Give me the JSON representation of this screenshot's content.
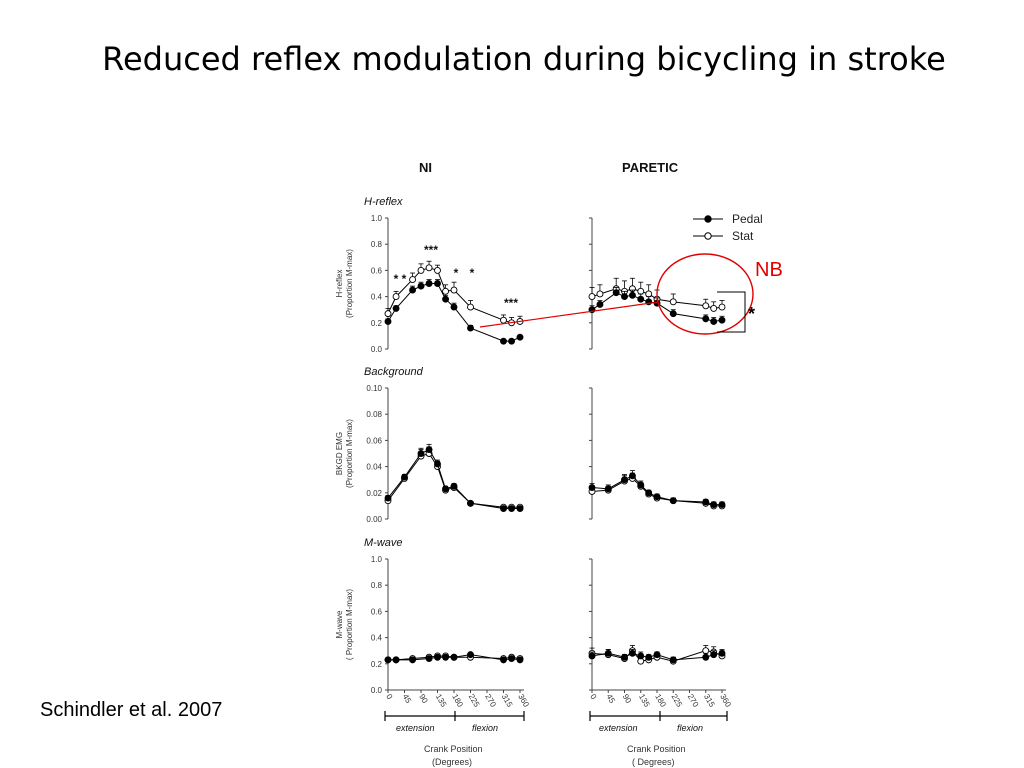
{
  "slide": {
    "title": "Reduced reflex modulation during bicycling in stroke",
    "citation": "Schindler et al. 2007",
    "annotation_nb": "NB",
    "annotation_star": "*"
  },
  "columns": [
    "NI",
    "PARETIC"
  ],
  "x_axis": {
    "ticks": [
      0,
      45,
      90,
      135,
      180,
      225,
      270,
      315,
      360
    ],
    "label_line1": "Crank Position",
    "label_line2_ni": "(Degrees)",
    "label_line2_paretic": "( Degrees)",
    "phase_extension": "extension",
    "phase_flexion": "flexion"
  },
  "legend": {
    "pedal": "Pedal",
    "stat": "Stat"
  },
  "colors": {
    "annotation": "#e00000",
    "series": "#000000"
  },
  "chart_data": [
    {
      "type": "line",
      "panel": "H-reflex",
      "column": "NI",
      "title": "H-reflex",
      "ylabel_line1": "H-reflex",
      "ylabel_line2": "(Proportion M-max)",
      "ylim": [
        0,
        1.0
      ],
      "yticks": [
        "0.0",
        "0.2",
        "0.4",
        "0.6",
        "0.8",
        "1.0"
      ],
      "significance": [
        "* *",
        "***",
        "*",
        "*",
        "***"
      ],
      "series": [
        {
          "name": "Pedal",
          "x": [
            0,
            22,
            67,
            90,
            112,
            135,
            157,
            180,
            225,
            315,
            337,
            360
          ],
          "y": [
            0.21,
            0.31,
            0.45,
            0.48,
            0.5,
            0.5,
            0.38,
            0.32,
            0.16,
            0.06,
            0.06,
            0.09
          ],
          "err": [
            0.02,
            0.02,
            0.03,
            0.03,
            0.03,
            0.03,
            0.03,
            0.03,
            0.02,
            0.01,
            0.01,
            0.01
          ]
        },
        {
          "name": "Stat",
          "x": [
            0,
            22,
            67,
            90,
            112,
            135,
            157,
            180,
            225,
            315,
            337,
            360
          ],
          "y": [
            0.27,
            0.4,
            0.53,
            0.6,
            0.62,
            0.6,
            0.44,
            0.45,
            0.32,
            0.22,
            0.2,
            0.21
          ],
          "err": [
            0.04,
            0.04,
            0.05,
            0.05,
            0.05,
            0.04,
            0.05,
            0.06,
            0.05,
            0.04,
            0.04,
            0.04
          ]
        }
      ]
    },
    {
      "type": "line",
      "panel": "H-reflex",
      "column": "PARETIC",
      "ylim": [
        0,
        1.0
      ],
      "series": [
        {
          "name": "Pedal",
          "x": [
            0,
            22,
            67,
            90,
            112,
            135,
            157,
            180,
            225,
            315,
            337,
            360
          ],
          "y": [
            0.3,
            0.34,
            0.43,
            0.4,
            0.41,
            0.38,
            0.36,
            0.35,
            0.27,
            0.23,
            0.21,
            0.22
          ],
          "err": [
            0.03,
            0.03,
            0.04,
            0.04,
            0.04,
            0.04,
            0.04,
            0.04,
            0.03,
            0.03,
            0.03,
            0.03
          ]
        },
        {
          "name": "Stat",
          "x": [
            0,
            22,
            67,
            90,
            112,
            135,
            157,
            180,
            225,
            315,
            337,
            360
          ],
          "y": [
            0.4,
            0.42,
            0.46,
            0.44,
            0.46,
            0.44,
            0.42,
            0.38,
            0.36,
            0.33,
            0.31,
            0.32
          ],
          "err": [
            0.07,
            0.07,
            0.08,
            0.08,
            0.08,
            0.07,
            0.07,
            0.07,
            0.06,
            0.05,
            0.05,
            0.05
          ]
        }
      ]
    },
    {
      "type": "line",
      "panel": "Background",
      "column": "NI",
      "title": "Background",
      "ylabel_line1": "BKGD EMG",
      "ylabel_line2": "(Proportion M-max)",
      "ylim": [
        0,
        0.1
      ],
      "yticks": [
        "0.00",
        "0.02",
        "0.04",
        "0.06",
        "0.08",
        "0.10"
      ],
      "series": [
        {
          "name": "Pedal",
          "x": [
            0,
            45,
            90,
            112,
            135,
            157,
            180,
            225,
            315,
            337,
            360
          ],
          "y": [
            0.016,
            0.032,
            0.05,
            0.053,
            0.042,
            0.023,
            0.025,
            0.012,
            0.008,
            0.008,
            0.008
          ],
          "err": [
            0.002,
            0.002,
            0.004,
            0.004,
            0.003,
            0.002,
            0.002,
            0.001,
            0.001,
            0.001,
            0.001
          ]
        },
        {
          "name": "Stat",
          "x": [
            0,
            45,
            90,
            112,
            135,
            157,
            180,
            225,
            315,
            337,
            360
          ],
          "y": [
            0.014,
            0.031,
            0.048,
            0.05,
            0.04,
            0.022,
            0.024,
            0.012,
            0.009,
            0.009,
            0.009
          ],
          "err": [
            0.002,
            0.002,
            0.005,
            0.005,
            0.004,
            0.002,
            0.002,
            0.001,
            0.001,
            0.001,
            0.001
          ]
        }
      ]
    },
    {
      "type": "line",
      "panel": "Background",
      "column": "PARETIC",
      "ylim": [
        0,
        0.1
      ],
      "series": [
        {
          "name": "Pedal",
          "x": [
            0,
            45,
            90,
            112,
            135,
            157,
            180,
            225,
            315,
            337,
            360
          ],
          "y": [
            0.024,
            0.023,
            0.03,
            0.033,
            0.026,
            0.02,
            0.017,
            0.014,
            0.013,
            0.011,
            0.011
          ],
          "err": [
            0.003,
            0.003,
            0.004,
            0.004,
            0.003,
            0.002,
            0.002,
            0.002,
            0.002,
            0.002,
            0.002
          ]
        },
        {
          "name": "Stat",
          "x": [
            0,
            45,
            90,
            112,
            135,
            157,
            180,
            225,
            315,
            337,
            360
          ],
          "y": [
            0.021,
            0.022,
            0.029,
            0.031,
            0.025,
            0.019,
            0.016,
            0.014,
            0.012,
            0.01,
            0.01
          ],
          "err": [
            0.003,
            0.003,
            0.004,
            0.004,
            0.003,
            0.002,
            0.002,
            0.002,
            0.002,
            0.002,
            0.002
          ]
        }
      ]
    },
    {
      "type": "line",
      "panel": "M-wave",
      "column": "NI",
      "title": "M-wave",
      "ylabel_line1": "M-wave",
      "ylabel_line2": "( Proportion M-max)",
      "ylim": [
        0,
        1.0
      ],
      "yticks": [
        "0.0",
        "0.2",
        "0.4",
        "0.6",
        "0.8",
        "1.0"
      ],
      "series": [
        {
          "name": "Pedal",
          "x": [
            0,
            22,
            67,
            112,
            135,
            157,
            180,
            225,
            315,
            337,
            360
          ],
          "y": [
            0.23,
            0.23,
            0.23,
            0.24,
            0.25,
            0.25,
            0.25,
            0.27,
            0.23,
            0.24,
            0.23
          ],
          "err": [
            0.01,
            0.01,
            0.01,
            0.01,
            0.01,
            0.01,
            0.01,
            0.01,
            0.01,
            0.01,
            0.01
          ]
        },
        {
          "name": "Stat",
          "x": [
            0,
            22,
            67,
            112,
            135,
            157,
            180,
            225,
            315,
            337,
            360
          ],
          "y": [
            0.23,
            0.23,
            0.24,
            0.25,
            0.26,
            0.26,
            0.25,
            0.25,
            0.24,
            0.25,
            0.24
          ],
          "err": [
            0.01,
            0.01,
            0.01,
            0.01,
            0.01,
            0.01,
            0.01,
            0.01,
            0.01,
            0.01,
            0.01
          ]
        }
      ]
    },
    {
      "type": "line",
      "panel": "M-wave",
      "column": "PARETIC",
      "ylim": [
        0,
        1.0
      ],
      "series": [
        {
          "name": "Pedal",
          "x": [
            0,
            45,
            90,
            112,
            135,
            157,
            180,
            225,
            315,
            337,
            360
          ],
          "y": [
            0.26,
            0.28,
            0.25,
            0.28,
            0.26,
            0.25,
            0.27,
            0.23,
            0.25,
            0.27,
            0.28
          ],
          "err": [
            0.03,
            0.03,
            0.02,
            0.03,
            0.03,
            0.02,
            0.02,
            0.02,
            0.03,
            0.03,
            0.03
          ]
        },
        {
          "name": "Stat",
          "x": [
            0,
            45,
            90,
            112,
            135,
            157,
            180,
            225,
            315,
            337,
            360
          ],
          "y": [
            0.28,
            0.27,
            0.24,
            0.3,
            0.22,
            0.23,
            0.25,
            0.22,
            0.3,
            0.29,
            0.26
          ],
          "err": [
            0.04,
            0.04,
            0.03,
            0.04,
            0.03,
            0.03,
            0.03,
            0.03,
            0.04,
            0.04,
            0.04
          ]
        }
      ]
    }
  ]
}
